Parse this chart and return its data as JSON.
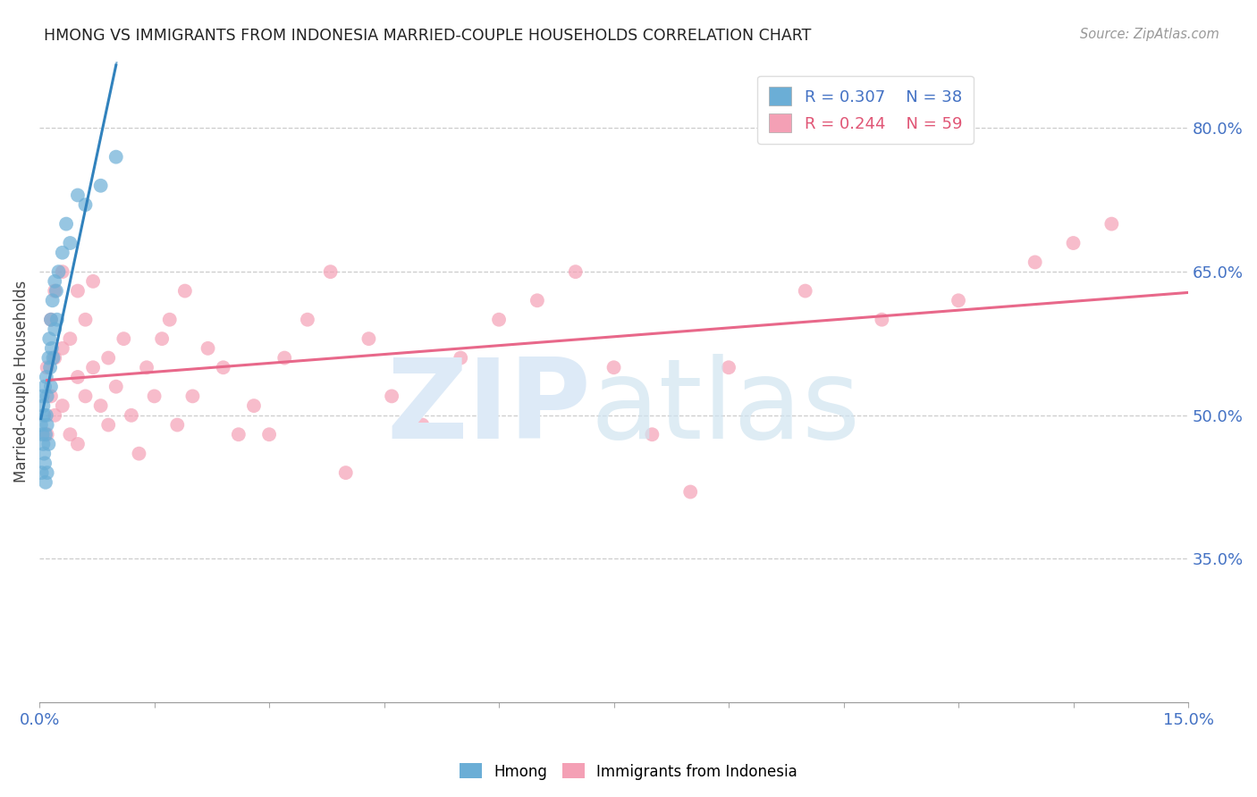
{
  "title": "HMONG VS IMMIGRANTS FROM INDONESIA MARRIED-COUPLE HOUSEHOLDS CORRELATION CHART",
  "source": "Source: ZipAtlas.com",
  "ylabel": "Married-couple Households",
  "xlim": [
    0.0,
    0.15
  ],
  "ylim": [
    0.2,
    0.87
  ],
  "yticks": [
    0.35,
    0.5,
    0.65,
    0.8
  ],
  "ytick_labels": [
    "35.0%",
    "50.0%",
    "65.0%",
    "80.0%"
  ],
  "xticks": [
    0.0,
    0.015,
    0.03,
    0.045,
    0.06,
    0.075,
    0.09,
    0.105,
    0.12,
    0.135,
    0.15
  ],
  "xtick_labels": [
    "0.0%",
    "",
    "",
    "",
    "",
    "",
    "",
    "",
    "",
    "",
    "15.0%"
  ],
  "hmong_R": 0.307,
  "hmong_N": 38,
  "indonesia_R": 0.244,
  "indonesia_N": 59,
  "hmong_color": "#6baed6",
  "indonesia_color": "#f4a0b5",
  "hmong_line_color": "#3182bd",
  "indonesia_line_color": "#e8688a",
  "background_color": "#ffffff",
  "hmong_x": [
    0.0002,
    0.0003,
    0.0004,
    0.0004,
    0.0005,
    0.0005,
    0.0006,
    0.0006,
    0.0007,
    0.0007,
    0.0008,
    0.0008,
    0.0009,
    0.0009,
    0.001,
    0.001,
    0.001,
    0.0012,
    0.0012,
    0.0013,
    0.0014,
    0.0015,
    0.0015,
    0.0016,
    0.0017,
    0.0018,
    0.002,
    0.002,
    0.0022,
    0.0023,
    0.0025,
    0.003,
    0.0035,
    0.004,
    0.005,
    0.006,
    0.008,
    0.01
  ],
  "hmong_y": [
    0.49,
    0.44,
    0.48,
    0.52,
    0.47,
    0.51,
    0.46,
    0.5,
    0.45,
    0.53,
    0.48,
    0.43,
    0.5,
    0.54,
    0.49,
    0.44,
    0.52,
    0.56,
    0.47,
    0.58,
    0.55,
    0.6,
    0.53,
    0.57,
    0.62,
    0.56,
    0.59,
    0.64,
    0.63,
    0.6,
    0.65,
    0.67,
    0.7,
    0.68,
    0.73,
    0.72,
    0.74,
    0.77
  ],
  "indonesia_x": [
    0.001,
    0.001,
    0.0015,
    0.0015,
    0.002,
    0.002,
    0.002,
    0.003,
    0.003,
    0.003,
    0.004,
    0.004,
    0.005,
    0.005,
    0.005,
    0.006,
    0.006,
    0.007,
    0.007,
    0.008,
    0.009,
    0.009,
    0.01,
    0.011,
    0.012,
    0.013,
    0.014,
    0.015,
    0.016,
    0.017,
    0.018,
    0.019,
    0.02,
    0.022,
    0.024,
    0.026,
    0.028,
    0.03,
    0.032,
    0.035,
    0.038,
    0.04,
    0.043,
    0.046,
    0.05,
    0.055,
    0.06,
    0.065,
    0.07,
    0.075,
    0.08,
    0.085,
    0.09,
    0.1,
    0.11,
    0.12,
    0.13,
    0.135,
    0.14
  ],
  "indonesia_y": [
    0.48,
    0.55,
    0.52,
    0.6,
    0.5,
    0.56,
    0.63,
    0.51,
    0.57,
    0.65,
    0.48,
    0.58,
    0.47,
    0.54,
    0.63,
    0.52,
    0.6,
    0.55,
    0.64,
    0.51,
    0.49,
    0.56,
    0.53,
    0.58,
    0.5,
    0.46,
    0.55,
    0.52,
    0.58,
    0.6,
    0.49,
    0.63,
    0.52,
    0.57,
    0.55,
    0.48,
    0.51,
    0.48,
    0.56,
    0.6,
    0.65,
    0.44,
    0.58,
    0.52,
    0.49,
    0.56,
    0.6,
    0.62,
    0.65,
    0.55,
    0.48,
    0.42,
    0.55,
    0.63,
    0.6,
    0.62,
    0.66,
    0.68,
    0.7
  ]
}
